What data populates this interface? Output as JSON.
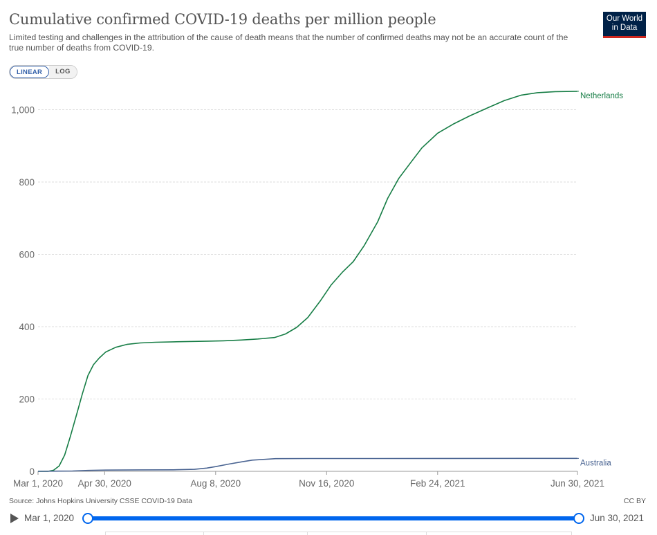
{
  "header": {
    "title": "Cumulative confirmed COVID-19 deaths per million people",
    "subtitle": "Limited testing and challenges in the attribution of the cause of death means that the number of confirmed deaths may not be an accurate count of the true number of deaths from COVID-19.",
    "logo_line1": "Our World",
    "logo_line2": "in Data"
  },
  "controls": {
    "linear_label": "LINEAR",
    "log_label": "LOG",
    "active": "linear"
  },
  "footer": {
    "source": "Source: Johns Hopkins University CSSE COVID-19 Data",
    "license": "CC BY"
  },
  "timeline": {
    "start_label": "Mar 1, 2020",
    "end_label": "Jun 30, 2021"
  },
  "colors": {
    "netherlands": "#167d45",
    "australia": "#4a6492",
    "grid": "#dddddd",
    "accent": "#3360a9",
    "slider": "#0066ee"
  },
  "chart_data": {
    "type": "line",
    "title": "Cumulative confirmed COVID-19 deaths per million people",
    "xlabel": "",
    "ylabel": "",
    "x_domain": [
      "2020-03-01",
      "2021-06-30"
    ],
    "ylim": [
      0,
      1050
    ],
    "yticks": [
      0,
      200,
      400,
      600,
      800,
      1000
    ],
    "ytick_labels": [
      "0",
      "200",
      "400",
      "600",
      "800",
      "1,000"
    ],
    "xticks": [
      "2020-03-01",
      "2020-04-30",
      "2020-08-08",
      "2020-11-16",
      "2021-02-24",
      "2021-06-30"
    ],
    "xtick_labels": [
      "Mar 1, 2020",
      "Apr 30, 2020",
      "Aug 8, 2020",
      "Nov 16, 2020",
      "Feb 24, 2021",
      "Jun 30, 2021"
    ],
    "grid": true,
    "legend": "end-of-line labels",
    "series": [
      {
        "name": "Netherlands",
        "color": "#167d45",
        "points": [
          [
            "2020-03-01",
            0
          ],
          [
            "2020-03-10",
            0
          ],
          [
            "2020-03-15",
            3
          ],
          [
            "2020-03-20",
            15
          ],
          [
            "2020-03-25",
            45
          ],
          [
            "2020-03-30",
            95
          ],
          [
            "2020-04-05",
            160
          ],
          [
            "2020-04-10",
            215
          ],
          [
            "2020-04-15",
            265
          ],
          [
            "2020-04-20",
            295
          ],
          [
            "2020-04-25",
            313
          ],
          [
            "2020-05-01",
            330
          ],
          [
            "2020-05-10",
            343
          ],
          [
            "2020-05-20",
            351
          ],
          [
            "2020-06-01",
            355
          ],
          [
            "2020-06-15",
            357
          ],
          [
            "2020-07-01",
            358
          ],
          [
            "2020-07-15",
            359
          ],
          [
            "2020-08-01",
            360
          ],
          [
            "2020-08-15",
            361
          ],
          [
            "2020-08-31",
            363
          ],
          [
            "2020-09-15",
            366
          ],
          [
            "2020-09-30",
            370
          ],
          [
            "2020-10-10",
            380
          ],
          [
            "2020-10-20",
            398
          ],
          [
            "2020-10-30",
            425
          ],
          [
            "2020-11-10",
            470
          ],
          [
            "2020-11-20",
            515
          ],
          [
            "2020-11-30",
            550
          ],
          [
            "2020-12-10",
            580
          ],
          [
            "2020-12-20",
            625
          ],
          [
            "2021-01-01",
            690
          ],
          [
            "2021-01-10",
            755
          ],
          [
            "2021-01-20",
            810
          ],
          [
            "2021-01-31",
            855
          ],
          [
            "2021-02-10",
            895
          ],
          [
            "2021-02-24",
            935
          ],
          [
            "2021-03-10",
            960
          ],
          [
            "2021-03-25",
            983
          ],
          [
            "2021-04-10",
            1005
          ],
          [
            "2021-04-25",
            1025
          ],
          [
            "2021-05-10",
            1040
          ],
          [
            "2021-05-25",
            1047
          ],
          [
            "2021-06-10",
            1050
          ],
          [
            "2021-06-30",
            1051
          ]
        ]
      },
      {
        "name": "Australia",
        "color": "#4a6492",
        "points": [
          [
            "2020-03-01",
            0
          ],
          [
            "2020-03-20",
            0.5
          ],
          [
            "2020-04-01",
            1
          ],
          [
            "2020-04-15",
            2.5
          ],
          [
            "2020-05-01",
            3.5
          ],
          [
            "2020-06-01",
            4
          ],
          [
            "2020-07-01",
            4.2
          ],
          [
            "2020-07-20",
            5.5
          ],
          [
            "2020-07-31",
            9
          ],
          [
            "2020-08-08",
            13
          ],
          [
            "2020-08-20",
            20
          ],
          [
            "2020-08-31",
            26
          ],
          [
            "2020-09-10",
            31
          ],
          [
            "2020-09-20",
            33
          ],
          [
            "2020-10-01",
            35
          ],
          [
            "2020-11-01",
            35.5
          ],
          [
            "2021-01-01",
            35.5
          ],
          [
            "2021-03-01",
            35.6
          ],
          [
            "2021-06-30",
            35.7
          ]
        ]
      }
    ]
  }
}
